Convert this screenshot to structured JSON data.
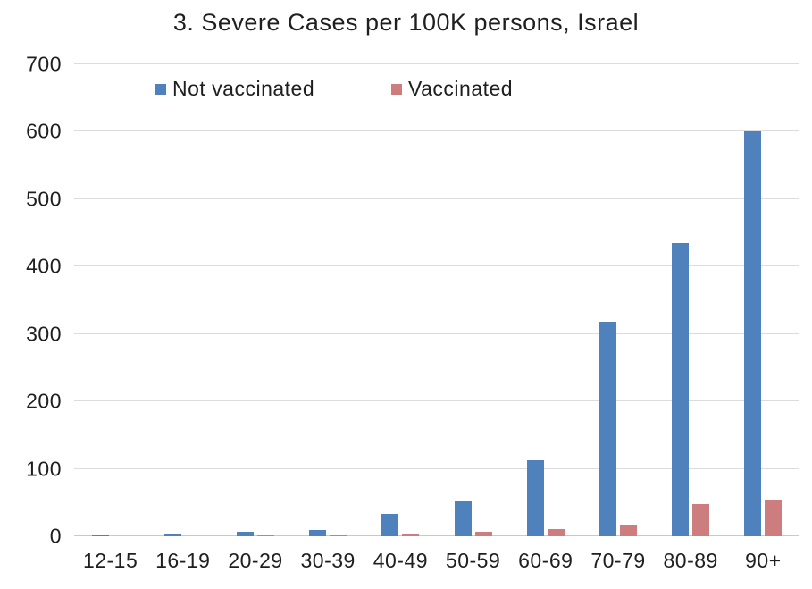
{
  "chart_data": {
    "type": "bar",
    "title": "3. Severe Cases per 100K persons, Israel",
    "categories": [
      "12-15",
      "16-19",
      "20-29",
      "30-39",
      "40-49",
      "50-59",
      "60-69",
      "70-79",
      "80-89",
      "90+"
    ],
    "series": [
      {
        "name": "Not vaccinated",
        "color": "#4f81bd",
        "values": [
          2,
          3,
          6,
          9,
          33,
          53,
          113,
          318,
          435,
          600
        ]
      },
      {
        "name": "Vaccinated",
        "color": "#cd7d7d",
        "values": [
          0,
          0,
          1,
          2,
          3,
          6,
          11,
          17,
          48,
          54
        ]
      }
    ],
    "xlabel": "",
    "ylabel": "",
    "ylim": [
      0,
      700
    ],
    "yticks": [
      0,
      100,
      200,
      300,
      400,
      500,
      600,
      700
    ],
    "grid": "horizontal-only",
    "legend_position": "top-inside",
    "gridline_color": "#dcdcdc",
    "axis_line_color": "#c9c9c9",
    "text_color": "#1f1f1f"
  }
}
